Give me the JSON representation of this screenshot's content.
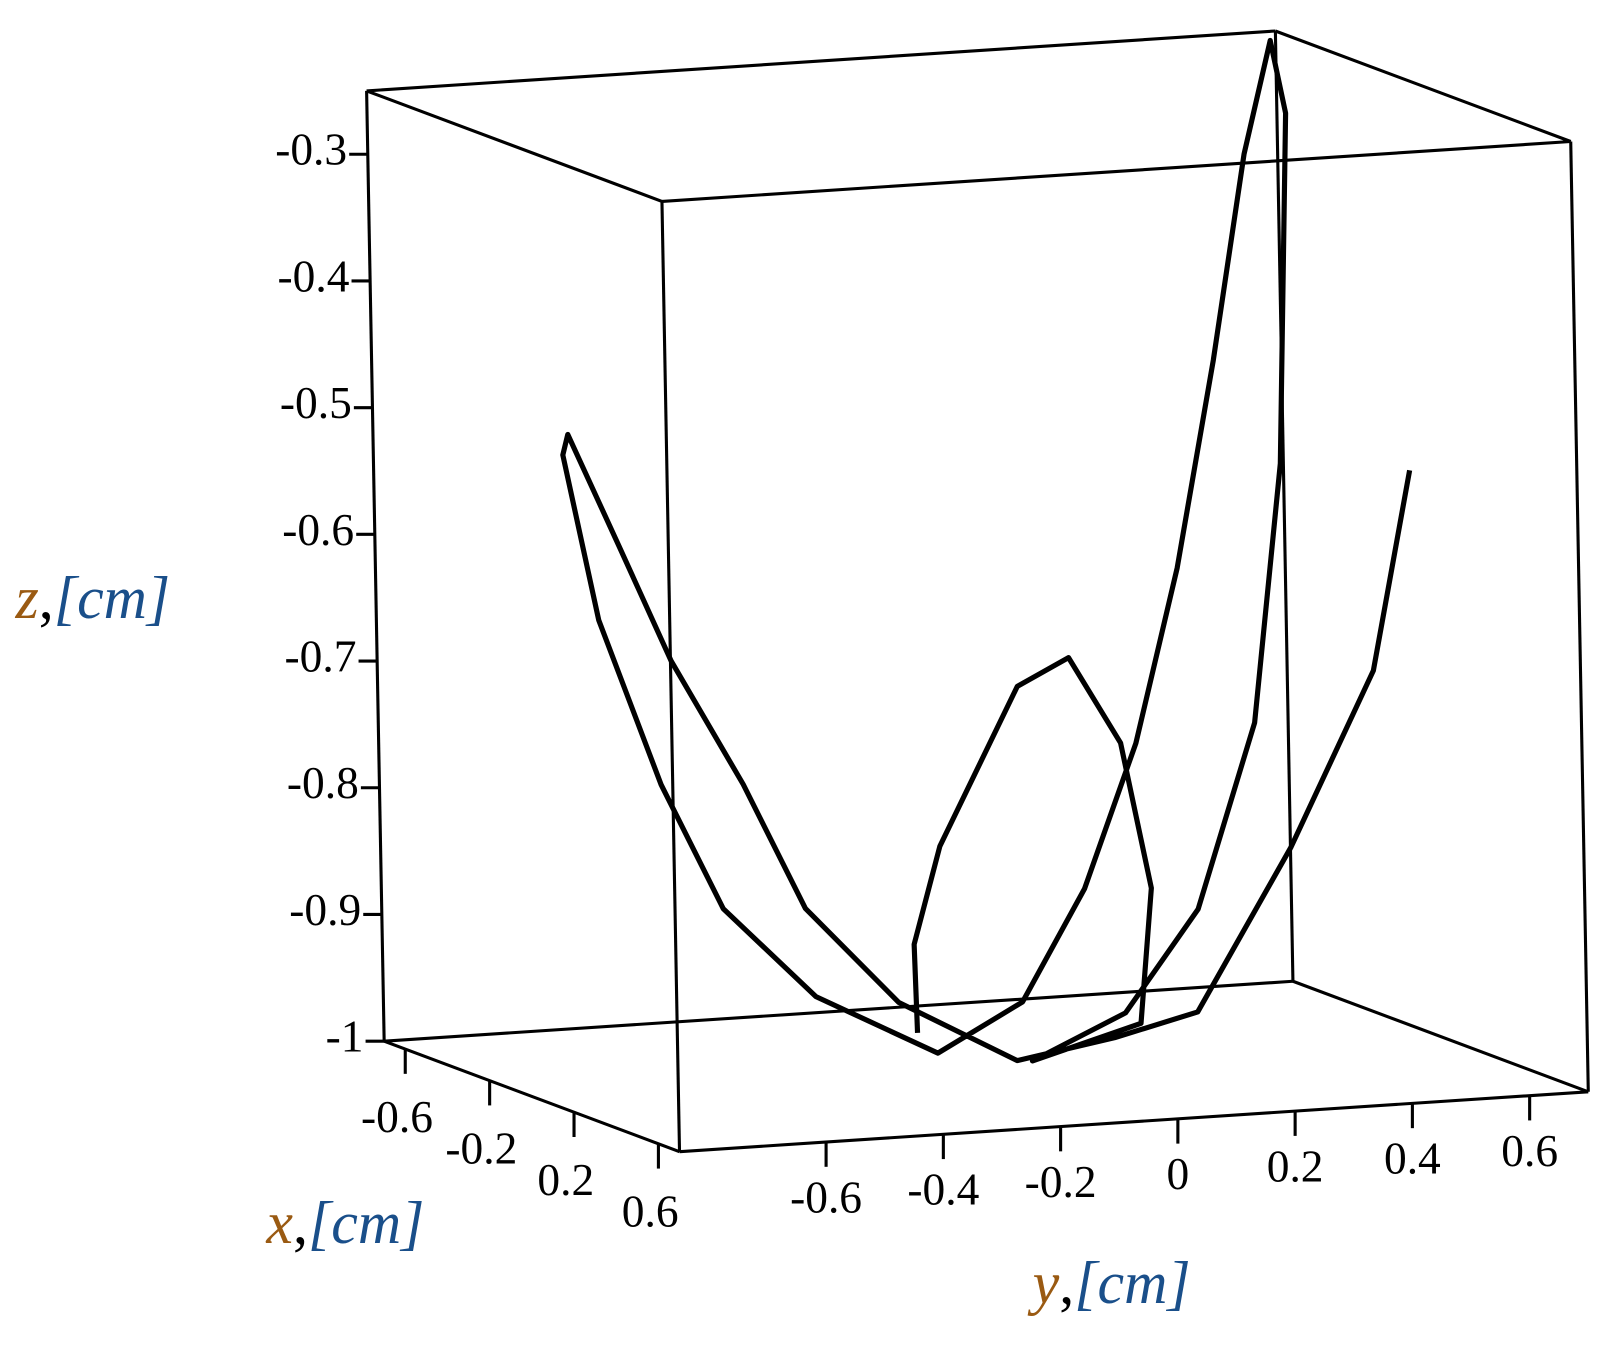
{
  "chart_data": {
    "type": "line3d",
    "color": "#000000",
    "xlim": [
      -0.7,
      0.7
    ],
    "ylim": [
      -0.85,
      0.7
    ],
    "zlim": [
      -1,
      -0.25
    ],
    "xticks": [
      -0.6,
      -0.2,
      0.2,
      0.6
    ],
    "yticks": [
      -0.6,
      -0.4,
      -0.2,
      0,
      0.2,
      0.4,
      0.6
    ],
    "zticks": [
      -0.3,
      -0.4,
      -0.5,
      -0.6,
      -0.7,
      -0.8,
      -0.9,
      -1
    ],
    "x_label": {
      "name": "x",
      "separator": ",",
      "unit": "[cm]"
    },
    "y_label": {
      "name": "y",
      "separator": ",",
      "unit": "[cm]"
    },
    "z_label": {
      "name": "z",
      "separator": ",",
      "unit": "[cm]"
    },
    "x": [
      0,
      0,
      0,
      0,
      0,
      0,
      0,
      0,
      0,
      0,
      0,
      0,
      0,
      0,
      0,
      0,
      0,
      0,
      0,
      0,
      0,
      0,
      0,
      0,
      0,
      0,
      0,
      0,
      0,
      0,
      0,
      0,
      0,
      0,
      0,
      0,
      0,
      0,
      0
    ],
    "y": [
      0.665,
      0.597,
      0.451,
      0.287,
      0.145,
      -0.022,
      -0.222,
      -0.378,
      -0.48,
      -0.599,
      -0.683,
      -0.768,
      -0.777,
      -0.721,
      -0.62,
      -0.518,
      -0.363,
      -0.157,
      -0.011,
      0.098,
      0.19,
      0.266,
      0.334,
      0.393,
      0.441,
      0.465,
      0.445,
      0.393,
      0.291,
      0.164,
      0.004,
      0.19,
      0.212,
      0.164,
      0.078,
      -0.01,
      -0.147,
      -0.194,
      -0.191
    ],
    "z": [
      -0.552,
      -0.708,
      -0.843,
      -0.968,
      -0.984,
      -0.997,
      -0.945,
      -0.866,
      -0.765,
      -0.664,
      -0.572,
      -0.48,
      -0.496,
      -0.628,
      -0.761,
      -0.862,
      -0.936,
      -0.987,
      -0.951,
      -0.865,
      -0.753,
      -0.617,
      -0.455,
      -0.294,
      -0.206,
      -0.264,
      -0.54,
      -0.743,
      -0.887,
      -0.965,
      -0.998,
      -0.974,
      -0.868,
      -0.752,
      -0.682,
      -0.702,
      -0.824,
      -0.9,
      -0.97
    ]
  }
}
